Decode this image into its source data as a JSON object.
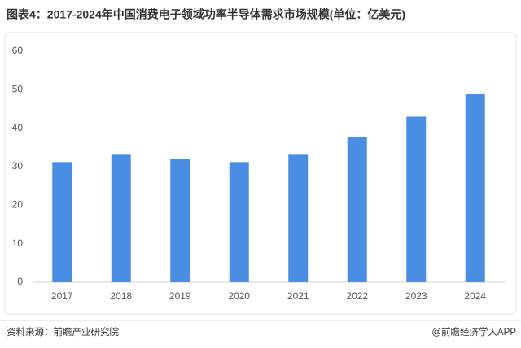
{
  "chart_data": {
    "type": "bar",
    "title": "图表4：2017-2024年中国消费电子领域功率半导体需求市场规模(单位：亿美元)",
    "categories": [
      "2017",
      "2018",
      "2019",
      "2020",
      "2021",
      "2022",
      "2023",
      "2024"
    ],
    "values": [
      31.2,
      33.1,
      32.1,
      31.2,
      33.1,
      37.8,
      43.0,
      48.9
    ],
    "color": "#4a8ee3",
    "ylim": [
      0,
      60
    ],
    "yticks": [
      0,
      10,
      20,
      30,
      40,
      50,
      60
    ],
    "grid": false,
    "source": "资料来源：前瞻产业研究院",
    "credit": "@前瞻经济学人APP"
  }
}
